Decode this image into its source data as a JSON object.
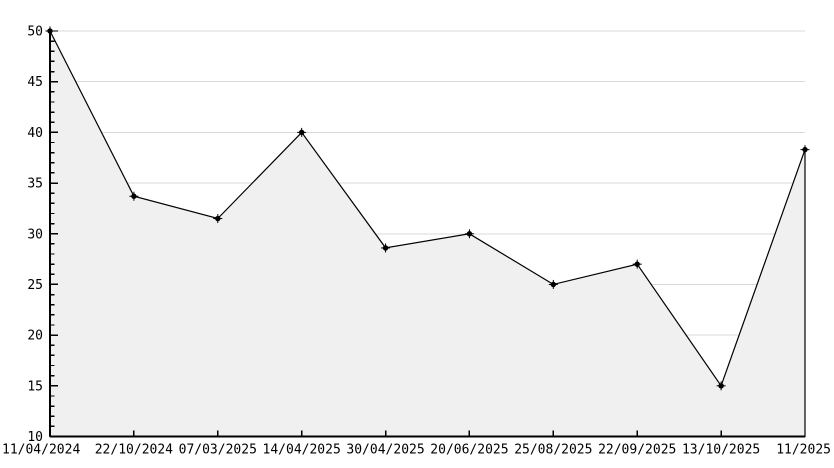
{
  "chart_data": {
    "type": "area",
    "title": "",
    "xlabel": "",
    "ylabel": "",
    "categories": [
      "11/04/2024",
      "22/10/2024",
      "07/03/2025",
      "14/04/2025",
      "30/04/2025",
      "20/06/2025",
      "25/08/2025",
      "22/09/2025",
      "13/10/2025",
      "11/2025"
    ],
    "values": [
      50,
      33.7,
      31.5,
      40,
      28.6,
      30,
      25,
      27,
      15,
      38.3
    ],
    "ylim": [
      10,
      50
    ],
    "y_major_step": 5,
    "y_minor_step": 1,
    "y_tick_labels": [
      "10",
      "15",
      "20",
      "25",
      "30",
      "35",
      "40",
      "45",
      "50"
    ],
    "grid": true,
    "legend_position": "none",
    "colors": {
      "line": "#000000",
      "marker": "#000000",
      "area_fill": "#f0f0f0",
      "gridline": "#d9d9d9",
      "axis": "#000000",
      "text": "#000000",
      "background": "#ffffff"
    }
  }
}
